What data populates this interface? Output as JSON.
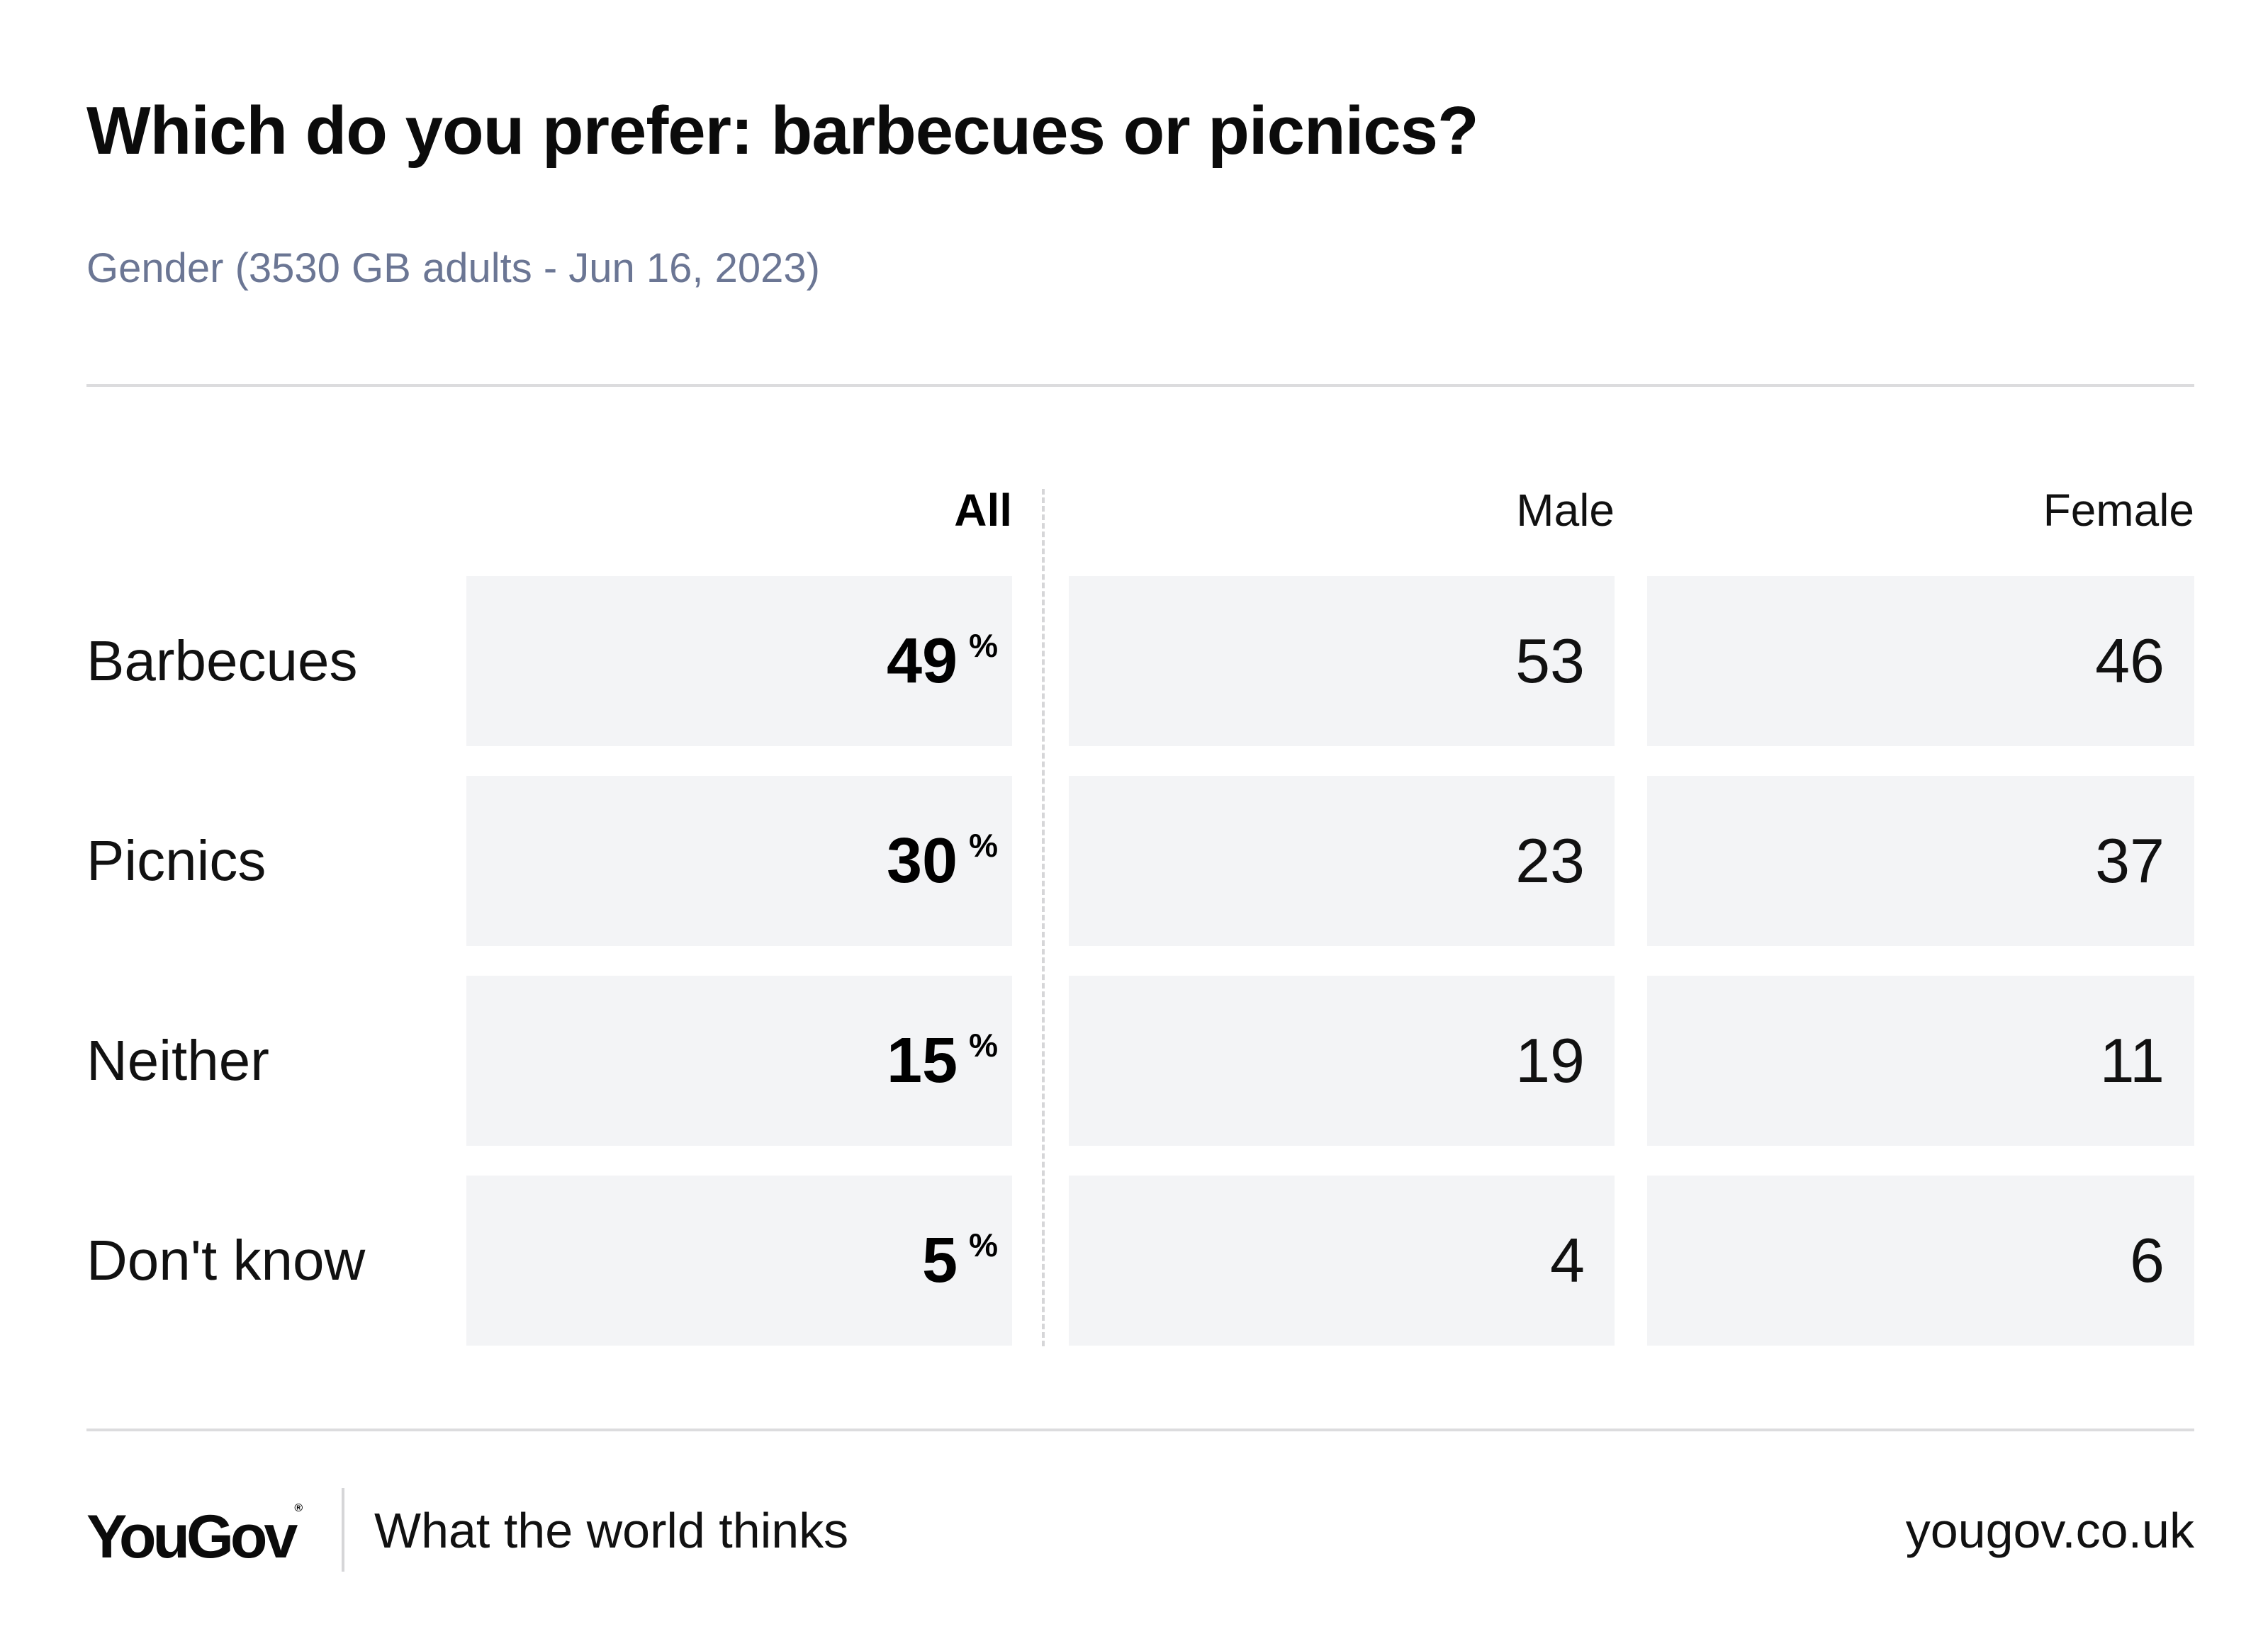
{
  "header": {
    "title": "Which do you prefer: barbecues or picnics?",
    "subtitle": "Gender (3530 GB adults - Jun 16, 2023)"
  },
  "chart_data": {
    "type": "table",
    "columns": [
      "All",
      "Male",
      "Female"
    ],
    "percent_sign": "%",
    "rows": [
      {
        "label": "Barbecues",
        "all": "49",
        "male": "53",
        "female": "46"
      },
      {
        "label": "Picnics",
        "all": "30",
        "male": "23",
        "female": "37"
      },
      {
        "label": "Neither",
        "all": "15",
        "male": "19",
        "female": "11"
      },
      {
        "label": "Don't know",
        "all": "5",
        "male": "4",
        "female": "6"
      }
    ]
  },
  "footer": {
    "logo": "YouGov",
    "tagline": "What the world thinks",
    "url": "yougov.co.uk"
  }
}
